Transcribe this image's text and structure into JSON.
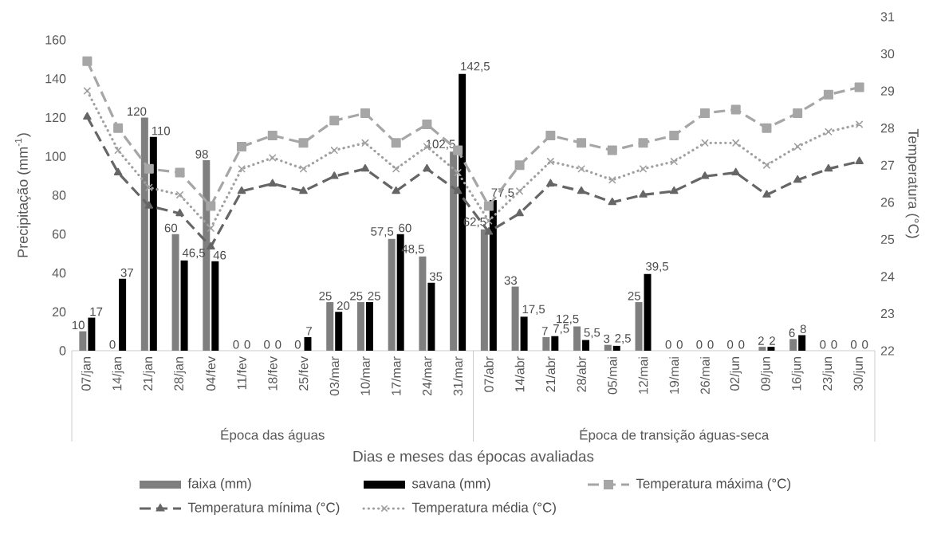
{
  "chart_data": {
    "type": "bar",
    "xlabel": "Dias e meses das épocas avaliadas",
    "ylabel": "Precipitação (mm$^{-1}$)",
    "y2label": "Temperatura (°C)",
    "categories": [
      "07/jan",
      "14/jan",
      "21/jan",
      "28/jan",
      "04/fev",
      "11/fev",
      "18/fev",
      "25/fev",
      "03/mar",
      "10/mar",
      "17/mar",
      "24/mar",
      "31/mar",
      "07/abr",
      "14/abr",
      "21/abr",
      "28/abr",
      "05/mai",
      "12/mai",
      "19/mai",
      "26/mai",
      "02/jun",
      "09/jun",
      "16/jun",
      "23/jun",
      "30/jun"
    ],
    "annotations": [
      "Época das águas",
      "Época de transição águas-seca"
    ],
    "ylim": [
      0,
      160
    ],
    "yticks": [
      0,
      20,
      40,
      60,
      80,
      100,
      120,
      140,
      160
    ],
    "y2lim": [
      22,
      31
    ],
    "y2ticks": [
      22,
      23,
      24,
      25,
      26,
      27,
      28,
      29,
      30,
      31
    ],
    "legend": "bottom",
    "series": [
      {
        "name": "faixa (mm)",
        "type": "bar",
        "color": "#7f7f7f",
        "values": [
          10,
          0,
          120,
          60,
          98,
          0,
          0,
          0,
          25,
          25,
          57.5,
          48.5,
          102.5,
          62.5,
          33,
          7,
          12.5,
          3,
          25,
          0,
          0,
          0,
          2,
          6,
          0,
          0
        ],
        "value_labels": [
          "10",
          "0",
          "120",
          "60",
          "98",
          "0",
          "0",
          "0",
          "25",
          "25",
          "57,5",
          "48,5",
          "102,5",
          "62,5",
          "33",
          "7",
          "12,5",
          "3",
          "25",
          "0",
          "0",
          "0",
          "2",
          "6",
          "0",
          "0"
        ]
      },
      {
        "name": "savana (mm)",
        "type": "bar",
        "color": "#000000",
        "values": [
          17,
          37,
          110,
          46.5,
          46,
          0,
          0,
          7,
          20,
          25,
          60,
          35,
          142.5,
          77.5,
          17.5,
          7.5,
          5.5,
          2.5,
          39.5,
          0,
          0,
          0,
          2,
          8,
          0,
          0
        ],
        "value_labels": [
          "17",
          "37",
          "110",
          "46,5",
          "46",
          "0",
          "0",
          "7",
          "20",
          "25",
          "60",
          "35",
          "142,5",
          "77,5",
          "17,5",
          "7,5",
          "5,5",
          "2,5",
          "39,5",
          "0",
          "0",
          "0",
          "2",
          "8",
          "0",
          "0"
        ]
      },
      {
        "name": "Temperatura máxima (°C)",
        "type": "line",
        "axis": "y2",
        "color": "#a6a6a6",
        "marker": "square",
        "line_style": "dashed",
        "values": [
          29.8,
          28.0,
          26.9,
          26.8,
          25.9,
          27.5,
          27.8,
          27.6,
          28.2,
          28.4,
          27.6,
          28.1,
          27.4,
          25.9,
          27.0,
          27.8,
          27.6,
          27.4,
          27.6,
          27.8,
          28.4,
          28.5,
          28.0,
          28.4,
          28.9,
          29.1
        ]
      },
      {
        "name": "Temperatura mínima (°C)",
        "type": "line",
        "axis": "y2",
        "color": "#666666",
        "marker": "triangle",
        "line_style": "dashed",
        "values": [
          28.3,
          26.8,
          25.9,
          25.7,
          24.8,
          26.3,
          26.5,
          26.3,
          26.7,
          26.9,
          26.3,
          26.9,
          26.3,
          25.2,
          25.7,
          26.5,
          26.3,
          26.0,
          26.2,
          26.3,
          26.7,
          26.8,
          26.2,
          26.6,
          26.9,
          27.1
        ]
      },
      {
        "name": "Temperatura média (°C)",
        "type": "line",
        "axis": "y2",
        "color": "#a0a0a0",
        "marker": "cross",
        "line_style": "dotted",
        "values": [
          29.0,
          27.4,
          26.4,
          26.2,
          25.3,
          26.9,
          27.2,
          26.9,
          27.4,
          27.6,
          26.9,
          27.5,
          26.8,
          25.5,
          26.3,
          27.1,
          26.9,
          26.6,
          26.9,
          27.1,
          27.6,
          27.6,
          27.0,
          27.5,
          27.9,
          28.1
        ]
      }
    ]
  }
}
